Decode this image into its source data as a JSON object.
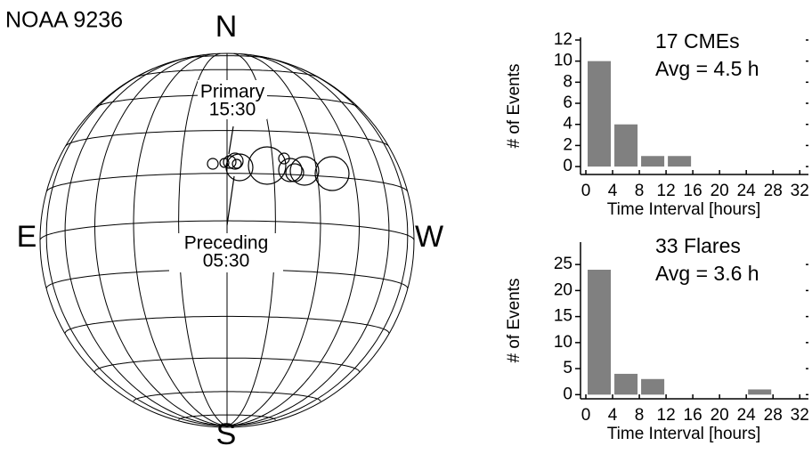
{
  "diagram": {
    "title": "NOAA 9236",
    "north": "N",
    "south": "S",
    "east": "E",
    "west": "W",
    "labels": [
      {
        "name": "Primary",
        "time": "15:30"
      },
      {
        "name": "Preceding",
        "time": "05:30"
      }
    ]
  },
  "chart_data": [
    {
      "type": "histogram",
      "annotation": "17 CMEs",
      "average": "Avg = 4.5 h",
      "x_label": "Time Interval [hours]",
      "y_label": "# of Events",
      "bins": [
        0,
        4,
        8,
        12,
        16,
        20,
        24,
        28,
        32
      ],
      "values": [
        10,
        4,
        1,
        1,
        0,
        0,
        0,
        0
      ],
      "color": "#808080",
      "xlim": [
        -0.8,
        33.3
      ],
      "xticks": [
        0,
        4,
        8,
        12,
        16,
        20,
        24,
        28,
        32
      ],
      "ylim": [
        -0.75,
        12.25
      ],
      "yticks": [
        0,
        2,
        4,
        6,
        8,
        10,
        12
      ]
    },
    {
      "type": "histogram",
      "annotation": "33 Flares",
      "average": "Avg = 3.6 h",
      "x_label": "Time Interval [hours]",
      "y_label": "# of Events",
      "bins": [
        0,
        4,
        8,
        12,
        16,
        20,
        24,
        28,
        32
      ],
      "values": [
        24,
        4,
        3,
        0,
        0,
        0,
        1,
        0
      ],
      "color": "#808080",
      "xlim": [
        -0.8,
        33.3
      ],
      "xticks": [
        0,
        4,
        8,
        12,
        16,
        20,
        24,
        28,
        32
      ],
      "ylim": [
        -0.8,
        29.3
      ],
      "yticks": [
        0,
        5,
        10,
        15,
        20,
        25
      ]
    }
  ]
}
